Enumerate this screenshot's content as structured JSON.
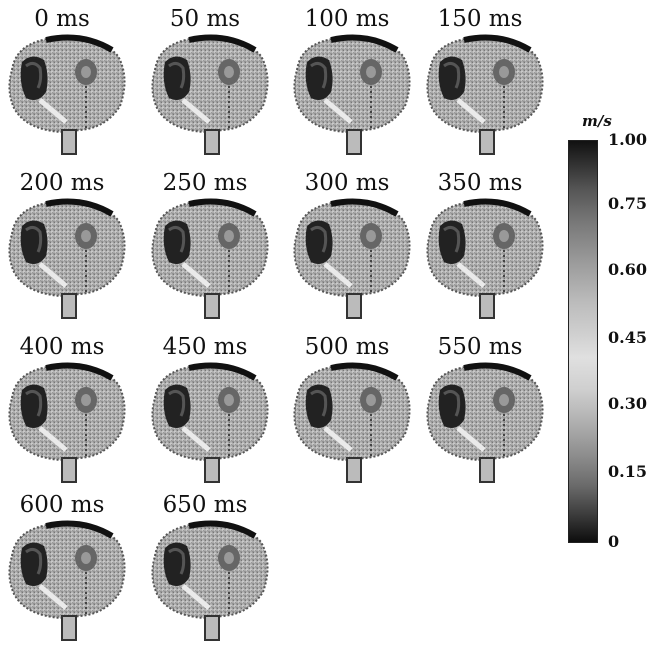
{
  "frames": [
    {
      "label": "0 ms"
    },
    {
      "label": "50 ms"
    },
    {
      "label": "100 ms"
    },
    {
      "label": "150 ms"
    },
    {
      "label": "200 ms"
    },
    {
      "label": "250 ms"
    },
    {
      "label": "300 ms"
    },
    {
      "label": "350 ms"
    },
    {
      "label": "400 ms"
    },
    {
      "label": "450 ms"
    },
    {
      "label": "500 ms"
    },
    {
      "label": "550 ms"
    },
    {
      "label": "600 ms"
    },
    {
      "label": "650 ms"
    }
  ],
  "colorbar": {
    "unit": "m/s",
    "ticks": [
      "1.00",
      "0.75",
      "0.60",
      "0.45",
      "0.30",
      "0.15",
      "0"
    ]
  }
}
